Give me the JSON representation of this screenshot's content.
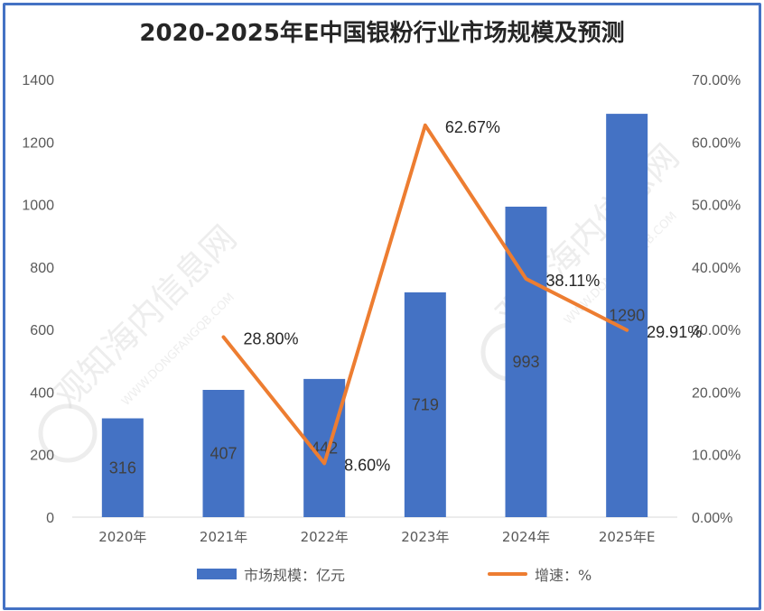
{
  "chart_data": {
    "type": "bar+line",
    "title": "2020-2025年E中国银粉行业市场规模及预测",
    "categories": [
      "2020年",
      "2021年",
      "2022年",
      "2023年",
      "2024年",
      "2025年E"
    ],
    "series": [
      {
        "name": "市场规模：亿元",
        "type": "bar",
        "axis": "left",
        "color": "#4472c4",
        "values": [
          316,
          407,
          442,
          719,
          993,
          1290
        ],
        "labels": [
          "316",
          "407",
          "442",
          "719",
          "993",
          "1290"
        ]
      },
      {
        "name": "增速：%",
        "type": "line",
        "axis": "right",
        "color": "#ed7d31",
        "values": [
          null,
          28.8,
          8.6,
          62.67,
          38.11,
          29.91
        ],
        "labels": [
          "",
          "28.80%",
          "8.60%",
          "62.67%",
          "38.11%",
          "29.91%"
        ]
      }
    ],
    "y_left": {
      "min": 0,
      "max": 1400,
      "step": 200,
      "ticks": [
        "0",
        "200",
        "400",
        "600",
        "800",
        "1000",
        "1200",
        "1400"
      ]
    },
    "y_right": {
      "min": 0,
      "max": 70,
      "step": 10,
      "ticks": [
        "0.00%",
        "10.00%",
        "20.00%",
        "30.00%",
        "40.00%",
        "50.00%",
        "60.00%",
        "70.00%"
      ]
    },
    "grid": false,
    "legend_position": "bottom"
  },
  "legend": {
    "bar_label": "市场规模：亿元",
    "line_label": "增速：%"
  },
  "watermark": {
    "text": "观知海内信息网",
    "subtext": "WWW.DONGFANGQB.COM"
  }
}
